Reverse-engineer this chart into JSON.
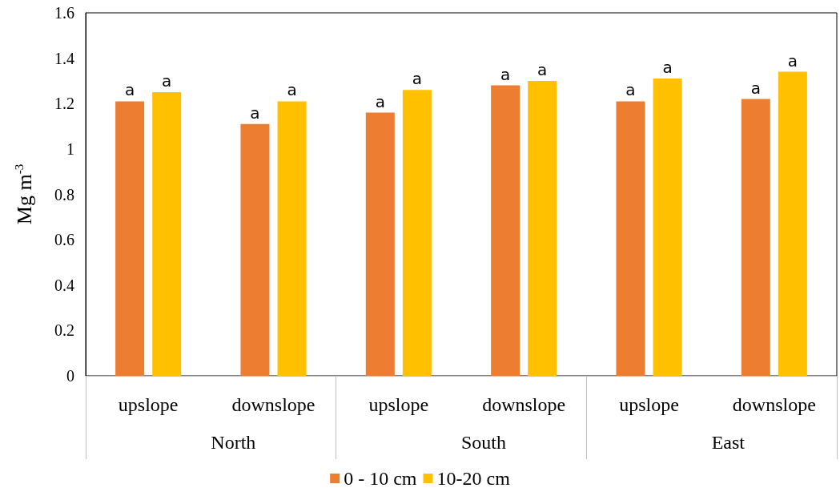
{
  "chart_data": {
    "type": "bar",
    "ylabel": "Mg m$^{-3}$",
    "categories": [
      "upslope",
      "downslope",
      "upslope",
      "downslope",
      "upslope",
      "downslope"
    ],
    "annotations": [
      "North",
      "South",
      "East"
    ],
    "series": [
      {
        "name": "0 - 10 cm",
        "color": "#ed7d31",
        "values": [
          1.21,
          1.11,
          1.16,
          1.28,
          1.21,
          1.22
        ],
        "value_labels": [
          "a",
          "a",
          "a",
          "a",
          "a",
          "a"
        ]
      },
      {
        "name": "10-20 cm",
        "color": "#ffc000",
        "values": [
          1.25,
          1.21,
          1.26,
          1.3,
          1.31,
          1.34
        ],
        "value_labels": [
          "a",
          "a",
          "a",
          "a",
          "a",
          "a"
        ]
      }
    ],
    "ylim": [
      0,
      1.6
    ],
    "yticks": [
      0,
      0.2,
      0.4,
      0.6,
      0.8,
      1,
      1.2,
      1.4,
      1.6
    ],
    "grid": false,
    "legend": "bottom"
  }
}
